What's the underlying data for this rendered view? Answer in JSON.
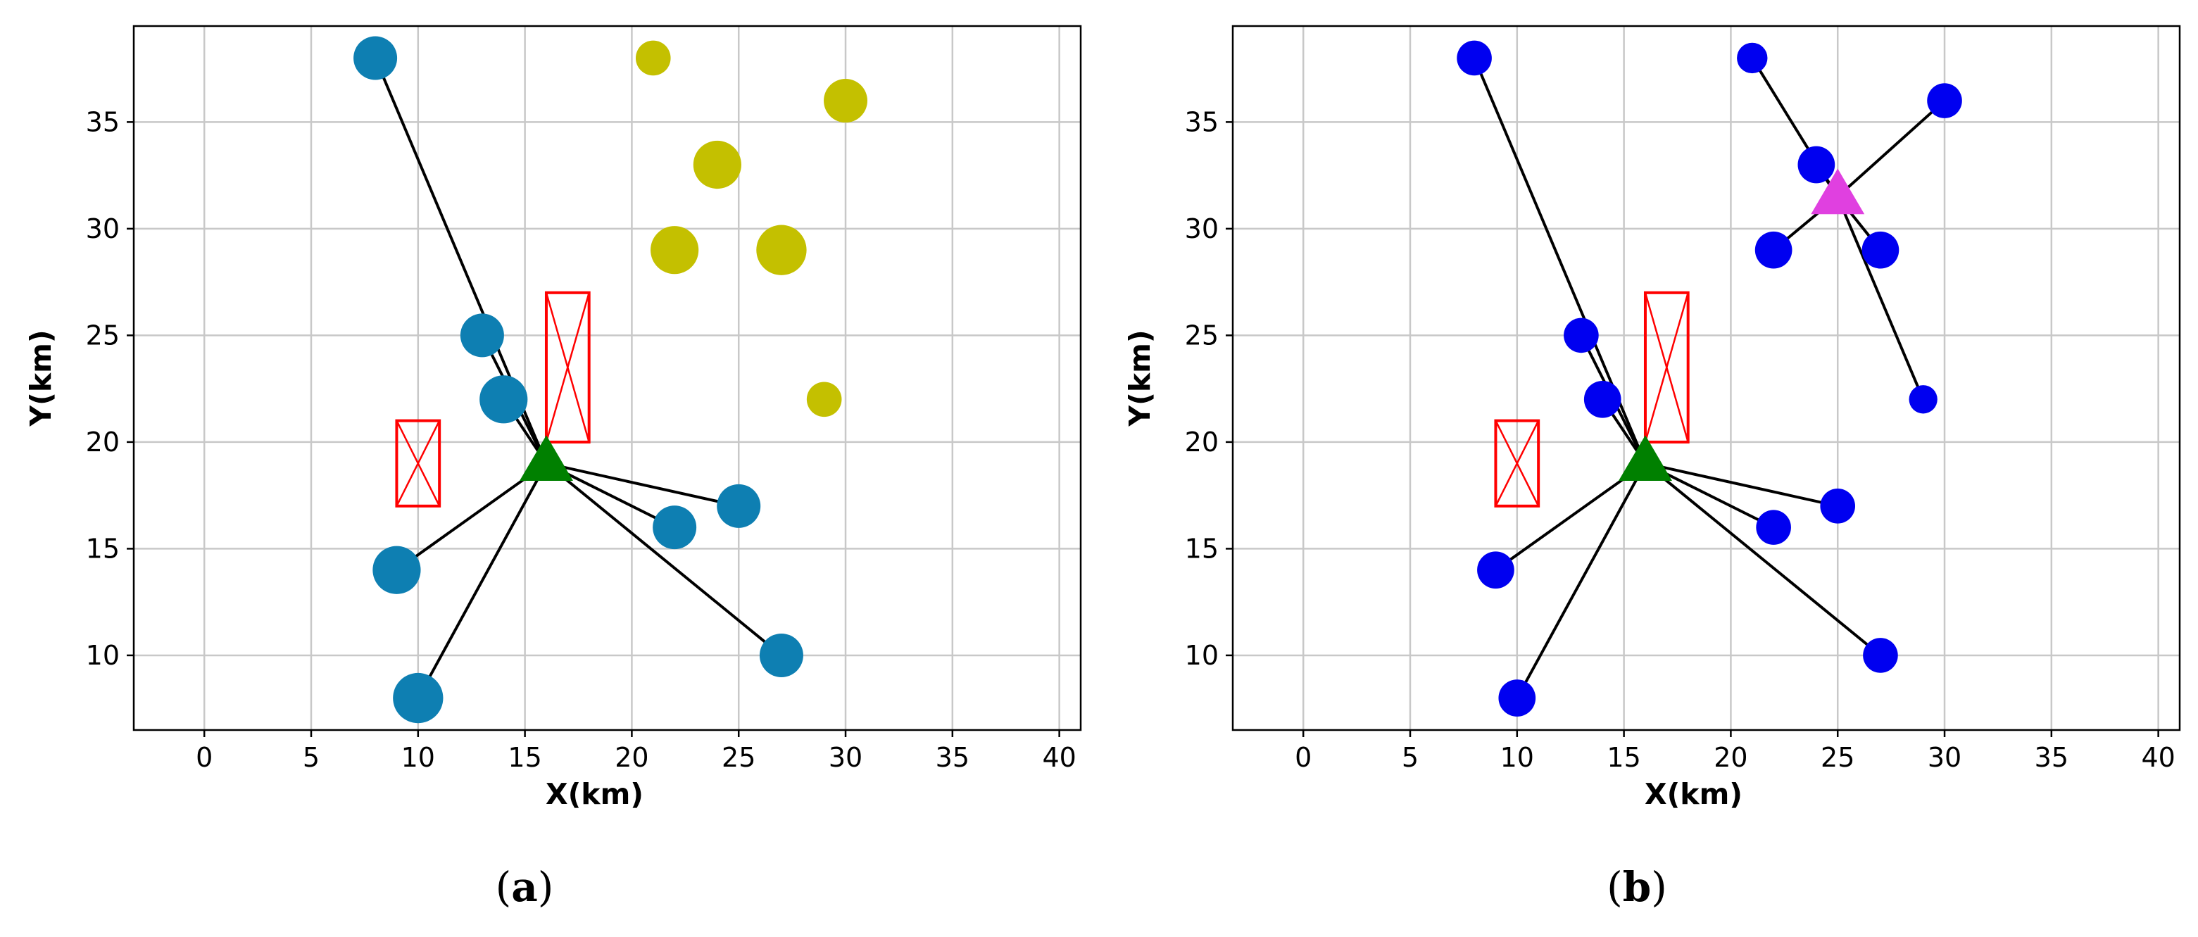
{
  "colors": {
    "left_points": "#0e7fb2",
    "left_unassigned": "#c4c000",
    "right_points": "#0000f0",
    "hub_green": "#008000",
    "hub_magenta": "#e040e0",
    "links": "#000000",
    "restricted_zones": "#ff0000",
    "grid": "#c8c8c8"
  },
  "chart_data": [
    {
      "type": "scatter",
      "panel_label": "a",
      "caption": {
        "open": "(",
        "letter": "a",
        "close": ")"
      },
      "xlabel": "X(km)",
      "ylabel": "Y(km)",
      "xlim": [
        -3.3,
        41
      ],
      "ylim": [
        6.5,
        39.5
      ],
      "xticks": [
        "0",
        "5",
        "10",
        "15",
        "20",
        "25",
        "30",
        "35",
        "40"
      ],
      "yticks": [
        "10",
        "15",
        "20",
        "25",
        "30",
        "35"
      ],
      "grid": true,
      "hubs": [
        {
          "x": 16,
          "y": 19,
          "shape": "triangle",
          "color": "#008000"
        }
      ],
      "points": [
        {
          "x": 8,
          "y": 38,
          "r": 1,
          "color": "#0e7fb2",
          "hub": 0
        },
        {
          "x": 13,
          "y": 25,
          "r": 1,
          "color": "#0e7fb2",
          "hub": 0
        },
        {
          "x": 14,
          "y": 22,
          "r": 1.1,
          "color": "#0e7fb2",
          "hub": 0
        },
        {
          "x": 9,
          "y": 14,
          "r": 1.1,
          "color": "#0e7fb2",
          "hub": 0
        },
        {
          "x": 10,
          "y": 8,
          "r": 1.15,
          "color": "#0e7fb2",
          "hub": 0
        },
        {
          "x": 22,
          "y": 16,
          "r": 1,
          "color": "#0e7fb2",
          "hub": 0
        },
        {
          "x": 25,
          "y": 17,
          "r": 1,
          "color": "#0e7fb2",
          "hub": 0
        },
        {
          "x": 27,
          "y": 10,
          "r": 1,
          "color": "#0e7fb2",
          "hub": 0
        },
        {
          "x": 21,
          "y": 38,
          "r": 0.8,
          "color": "#c4c000",
          "hub": null
        },
        {
          "x": 30,
          "y": 36,
          "r": 1,
          "color": "#c4c000",
          "hub": null
        },
        {
          "x": 24,
          "y": 33,
          "r": 1.1,
          "color": "#c4c000",
          "hub": null
        },
        {
          "x": 22,
          "y": 29,
          "r": 1.1,
          "color": "#c4c000",
          "hub": null
        },
        {
          "x": 27,
          "y": 29,
          "r": 1.15,
          "color": "#c4c000",
          "hub": null
        },
        {
          "x": 29,
          "y": 22,
          "r": 0.8,
          "color": "#c4c000",
          "hub": null
        }
      ],
      "zones": [
        {
          "x0": 9,
          "x1": 11,
          "y0": 17,
          "y1": 21
        },
        {
          "x0": 16,
          "x1": 18,
          "y0": 20,
          "y1": 27
        }
      ]
    },
    {
      "type": "scatter",
      "panel_label": "b",
      "caption": {
        "open": "(",
        "letter": "b",
        "close": ")"
      },
      "xlabel": "X(km)",
      "ylabel": "Y(km)",
      "xlim": [
        -3.3,
        41
      ],
      "ylim": [
        6.5,
        39.5
      ],
      "xticks": [
        "0",
        "5",
        "10",
        "15",
        "20",
        "25",
        "30",
        "35",
        "40"
      ],
      "yticks": [
        "10",
        "15",
        "20",
        "25",
        "30",
        "35"
      ],
      "grid": true,
      "hubs": [
        {
          "x": 16,
          "y": 19,
          "shape": "triangle",
          "color": "#008000"
        },
        {
          "x": 25,
          "y": 31.5,
          "shape": "triangle",
          "color": "#e040e0"
        }
      ],
      "points": [
        {
          "x": 8,
          "y": 38,
          "r": 0.8,
          "color": "#0000f0",
          "hub": 0
        },
        {
          "x": 13,
          "y": 25,
          "r": 0.8,
          "color": "#0000f0",
          "hub": 0
        },
        {
          "x": 14,
          "y": 22,
          "r": 0.85,
          "color": "#0000f0",
          "hub": 0
        },
        {
          "x": 9,
          "y": 14,
          "r": 0.85,
          "color": "#0000f0",
          "hub": 0
        },
        {
          "x": 10,
          "y": 8,
          "r": 0.85,
          "color": "#0000f0",
          "hub": 0
        },
        {
          "x": 22,
          "y": 16,
          "r": 0.8,
          "color": "#0000f0",
          "hub": 0
        },
        {
          "x": 25,
          "y": 17,
          "r": 0.8,
          "color": "#0000f0",
          "hub": 0
        },
        {
          "x": 27,
          "y": 10,
          "r": 0.8,
          "color": "#0000f0",
          "hub": 0
        },
        {
          "x": 21,
          "y": 38,
          "r": 0.7,
          "color": "#0000f0",
          "hub": 1
        },
        {
          "x": 30,
          "y": 36,
          "r": 0.8,
          "color": "#0000f0",
          "hub": 1
        },
        {
          "x": 24,
          "y": 33,
          "r": 0.85,
          "color": "#0000f0",
          "hub": 1
        },
        {
          "x": 22,
          "y": 29,
          "r": 0.85,
          "color": "#0000f0",
          "hub": 1
        },
        {
          "x": 27,
          "y": 29,
          "r": 0.85,
          "color": "#0000f0",
          "hub": 1
        },
        {
          "x": 29,
          "y": 22,
          "r": 0.65,
          "color": "#0000f0",
          "hub": 1
        }
      ],
      "zones": [
        {
          "x0": 9,
          "x1": 11,
          "y0": 17,
          "y1": 21
        },
        {
          "x0": 16,
          "x1": 18,
          "y0": 20,
          "y1": 27
        }
      ]
    }
  ]
}
